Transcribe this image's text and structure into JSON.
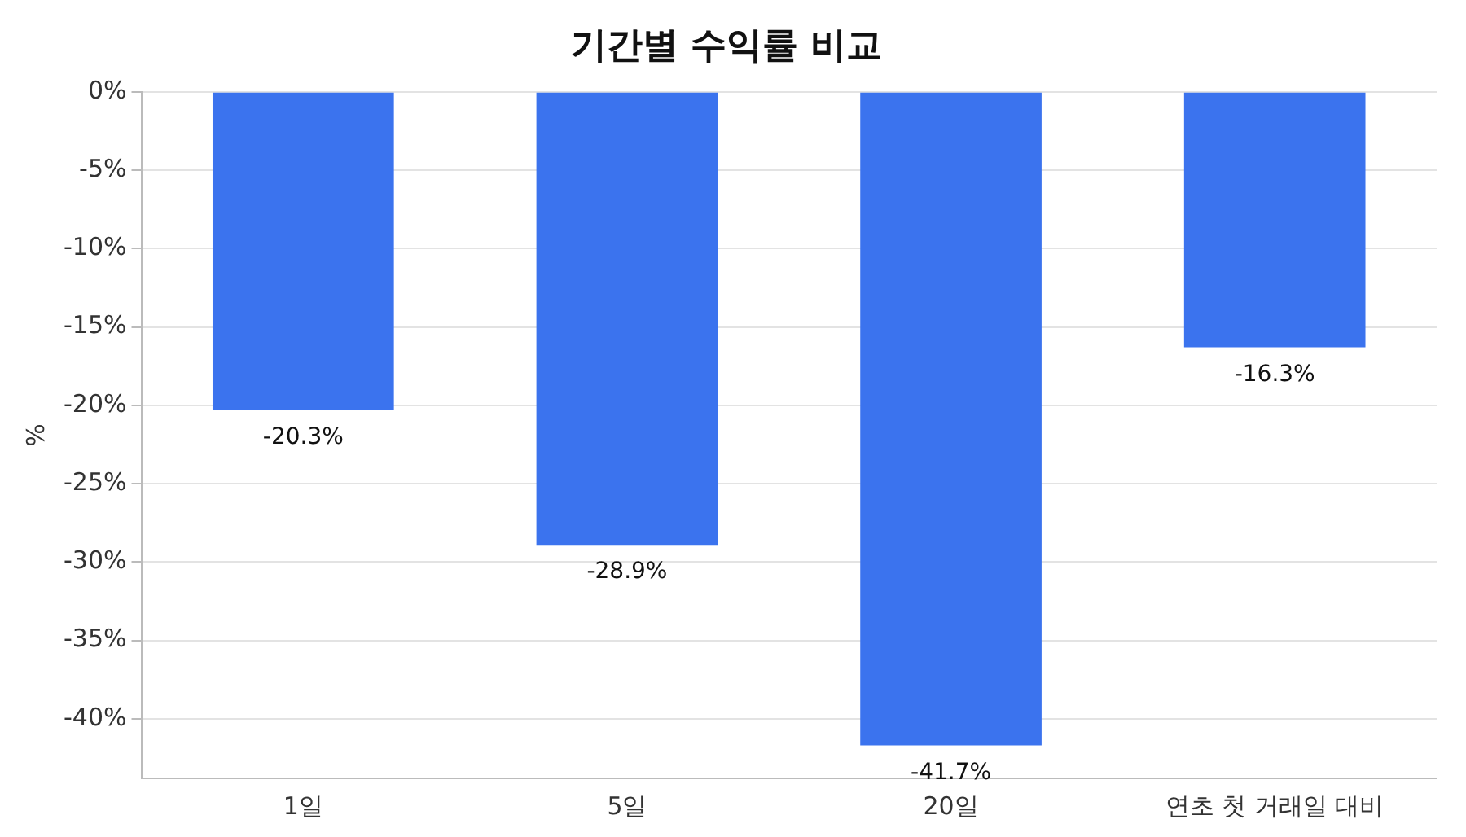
{
  "chart_data": {
    "type": "bar",
    "title": "기간별 수익률 비교",
    "ylabel": "%",
    "categories": [
      "1일",
      "5일",
      "20일",
      "연초 첫 거래일 대비"
    ],
    "values": [
      -20.3,
      -28.9,
      -41.7,
      -16.3
    ],
    "value_labels": [
      "-20.3%",
      "-28.9%",
      "-41.7%",
      "-16.3%"
    ],
    "color": "#3b73ee",
    "ylim": [
      -43.8,
      0
    ],
    "yticks": [
      {
        "value": 0,
        "label": "0%"
      },
      {
        "value": -5,
        "label": "-5%"
      },
      {
        "value": -10,
        "label": "-10%"
      },
      {
        "value": -15,
        "label": "-15%"
      },
      {
        "value": -20,
        "label": "-20%"
      },
      {
        "value": -25,
        "label": "-25%"
      },
      {
        "value": -30,
        "label": "-30%"
      },
      {
        "value": -35,
        "label": "-35%"
      },
      {
        "value": -40,
        "label": "-40%"
      }
    ],
    "grid": "y",
    "legend": false
  }
}
